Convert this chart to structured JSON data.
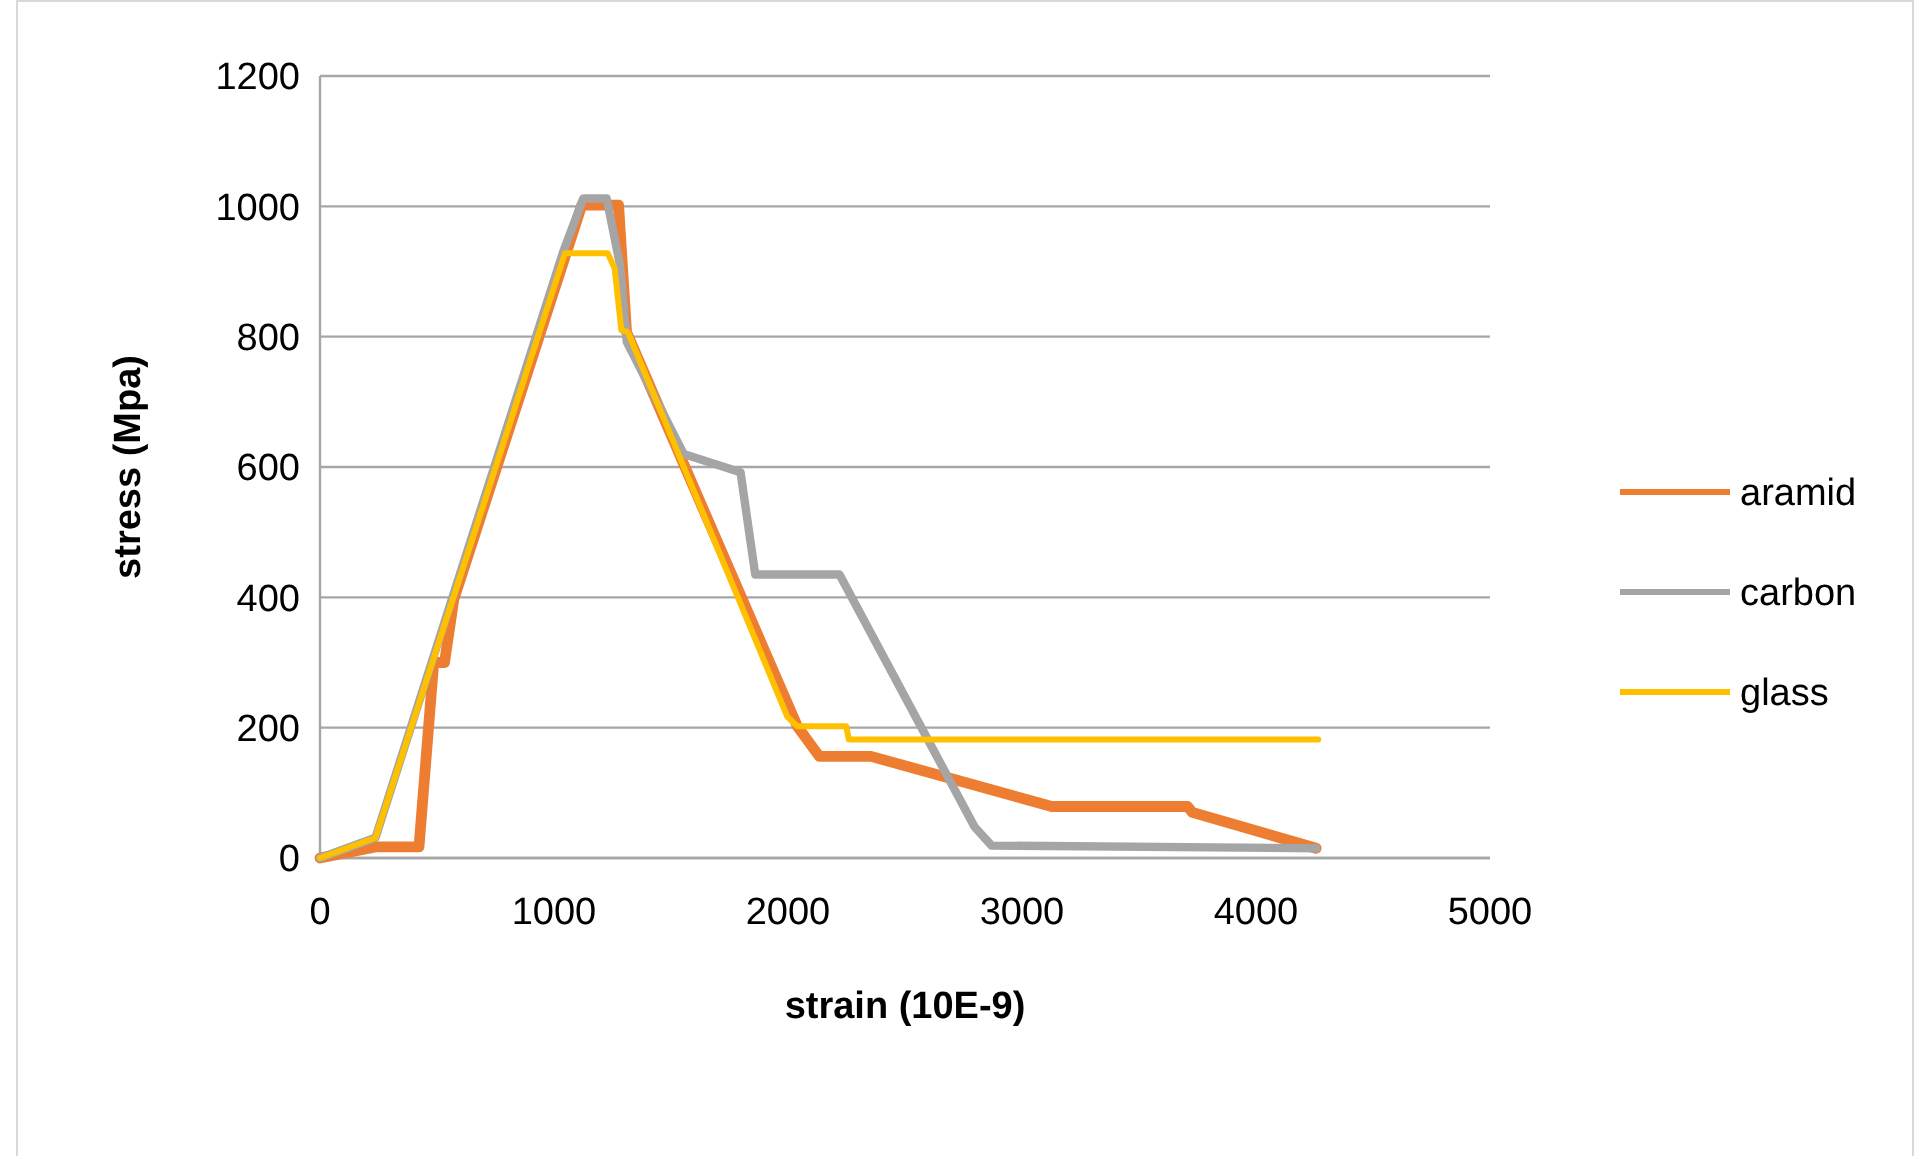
{
  "chart_data": {
    "type": "line",
    "xlabel": "strain (10E-9)",
    "ylabel": "stress (Mpa)",
    "xlim": [
      0,
      5000
    ],
    "xticks": [
      0,
      1000,
      2000,
      3000,
      4000,
      5000
    ],
    "ylim": [
      0,
      1200
    ],
    "yticks": [
      0,
      200,
      400,
      600,
      800,
      1000,
      1200
    ],
    "grid": "y",
    "legend": "right",
    "marker": "none",
    "line_style": "solid",
    "series": [
      {
        "name": "aramid",
        "color": "#ed7d31",
        "x": [
          0,
          237,
          423,
          486,
          532,
          572,
          1119,
          1276,
          1310,
          2040,
          2134,
          2355,
          3127,
          3708,
          3728,
          4257
        ],
        "values": [
          0,
          17,
          17,
          300,
          300,
          397,
          1002,
          1002,
          807,
          202,
          156,
          156,
          79,
          79,
          70,
          15
        ]
      },
      {
        "name": "carbon",
        "color": "#a5a5a5",
        "x": [
          0,
          237,
          1039,
          1125,
          1225,
          1282,
          1311,
          1554,
          1797,
          1860,
          2220,
          2797,
          2870,
          4257
        ],
        "values": [
          0,
          31,
          930,
          1012,
          1012,
          910,
          792,
          620,
          592,
          435,
          435,
          48,
          19,
          15
        ]
      },
      {
        "name": "glass",
        "color": "#ffc000",
        "x": [
          0,
          237,
          1047,
          1230,
          1259,
          1288,
          1316,
          1997,
          2040,
          2249,
          2260,
          4266
        ],
        "values": [
          0,
          31,
          928,
          928,
          905,
          810,
          807,
          217,
          202,
          202,
          182,
          182
        ]
      }
    ]
  }
}
